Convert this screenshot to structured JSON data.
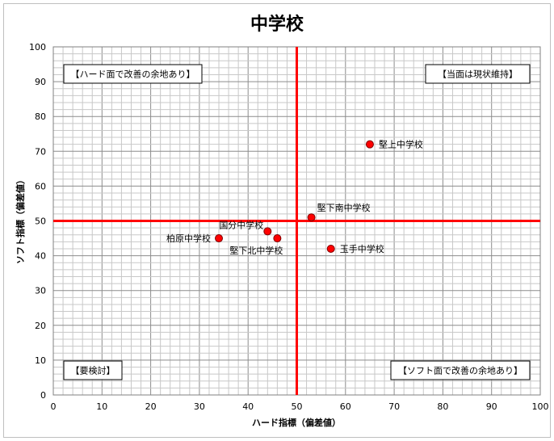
{
  "chart_data": {
    "type": "scatter",
    "title": "中学校",
    "xlabel": "ハード指標（偏差値）",
    "ylabel": "ソフト指標（偏差値）",
    "xlim": [
      0,
      100
    ],
    "ylim": [
      0,
      100
    ],
    "x_ticks": [
      0,
      10,
      20,
      30,
      40,
      50,
      60,
      70,
      80,
      90,
      100
    ],
    "y_ticks": [
      0,
      10,
      20,
      30,
      40,
      50,
      60,
      70,
      80,
      90,
      100
    ],
    "minor_grid_step": 2,
    "grid": true,
    "reference_lines": {
      "x": 50,
      "y": 50,
      "color": "#ff0000"
    },
    "marker_color": "#ff0000",
    "points": [
      {
        "name": "堅上中学校",
        "x": 65,
        "y": 72,
        "label_side": "right"
      },
      {
        "name": "堅下南中学校",
        "x": 53,
        "y": 51,
        "label_side": "above-right"
      },
      {
        "name": "国分中学校",
        "x": 44,
        "y": 47,
        "label_side": "above-left"
      },
      {
        "name": "柏原中学校",
        "x": 34,
        "y": 45,
        "label_side": "left"
      },
      {
        "name": "堅下北中学校",
        "x": 46,
        "y": 45,
        "label_side": "below-left"
      },
      {
        "name": "玉手中学校",
        "x": 57,
        "y": 42,
        "label_side": "right"
      }
    ],
    "quadrant_labels": {
      "top_left": "【ハード面で改善の余地あり】",
      "top_right": "【当面は現状維持】",
      "bottom_left": "【要検討】",
      "bottom_right": "【ソフト面で改善の余地あり】"
    }
  }
}
